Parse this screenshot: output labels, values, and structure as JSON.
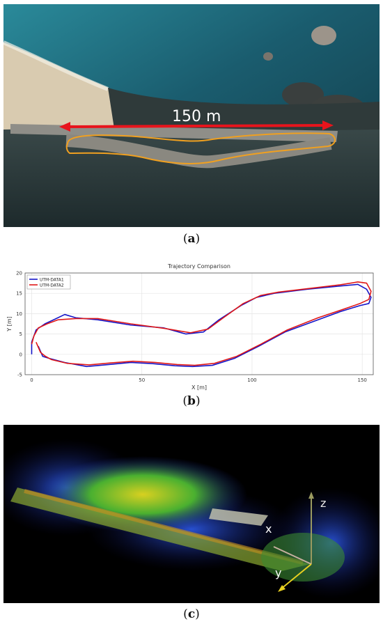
{
  "panel_a": {
    "distance_label": "150 m",
    "caption_open": "(",
    "caption_letter": "a",
    "caption_close": ")",
    "arrow_color": "#e8141c",
    "track_color": "#f0a020"
  },
  "panel_b": {
    "caption_open": "(",
    "caption_letter": "b",
    "caption_close": ")"
  },
  "panel_c": {
    "axis_z": "z",
    "axis_x": "x",
    "axis_y": "y",
    "caption_open": "(",
    "caption_letter": "c",
    "caption_close": ")"
  },
  "chart_data": {
    "type": "line",
    "title": "Trajectory Comparison",
    "xlabel": "X [m]",
    "ylabel": "Y [m]",
    "xlim": [
      -3,
      155
    ],
    "ylim": [
      -5,
      20
    ],
    "xticks": [
      0,
      50,
      100,
      150
    ],
    "yticks": [
      -5,
      0,
      5,
      10,
      15,
      20
    ],
    "grid": true,
    "legend_position": "top-left",
    "series": [
      {
        "name": "UTM-DATA1",
        "color": "#1515c8",
        "x": [
          0,
          0,
          2,
          6,
          10,
          15,
          20,
          30,
          45,
          60,
          70,
          78,
          85,
          95,
          102,
          110,
          125,
          140,
          148,
          152,
          154,
          153,
          149,
          140,
          130,
          115,
          103,
          92,
          82,
          73,
          65,
          55,
          45,
          35,
          25,
          15,
          8,
          5,
          3
        ],
        "y": [
          0,
          3,
          6,
          7.5,
          8.5,
          9.8,
          9,
          8.5,
          7.2,
          6.5,
          5,
          5.5,
          8.5,
          12,
          14,
          15,
          16,
          16.8,
          17.2,
          16,
          14,
          12.5,
          12,
          10.5,
          8.5,
          5.5,
          2,
          -1,
          -2.7,
          -3,
          -2.8,
          -2.3,
          -2,
          -2.5,
          -3,
          -2,
          -1,
          -0.5,
          2
        ]
      },
      {
        "name": "UTM-DATA2",
        "color": "#e01818",
        "x": [
          0,
          1,
          3,
          7,
          12,
          20,
          30,
          45,
          60,
          72,
          80,
          87,
          96,
          104,
          112,
          126,
          140,
          148,
          152,
          154,
          153,
          149,
          141,
          130,
          116,
          104,
          93,
          83,
          74,
          66,
          56,
          46,
          36,
          26,
          16,
          9,
          6,
          4,
          2
        ],
        "y": [
          2.5,
          4.5,
          6.5,
          7.5,
          8.5,
          8.8,
          8.8,
          7.5,
          6.4,
          5.3,
          6.2,
          9,
          12.5,
          14.5,
          15.3,
          16.2,
          17.1,
          17.8,
          17.5,
          15.5,
          13.5,
          12.5,
          11,
          9,
          6,
          2.5,
          -0.5,
          -2.2,
          -2.7,
          -2.5,
          -2,
          -1.7,
          -2.1,
          -2.6,
          -2.2,
          -1.3,
          -0.4,
          0.5,
          3
        ]
      }
    ]
  }
}
